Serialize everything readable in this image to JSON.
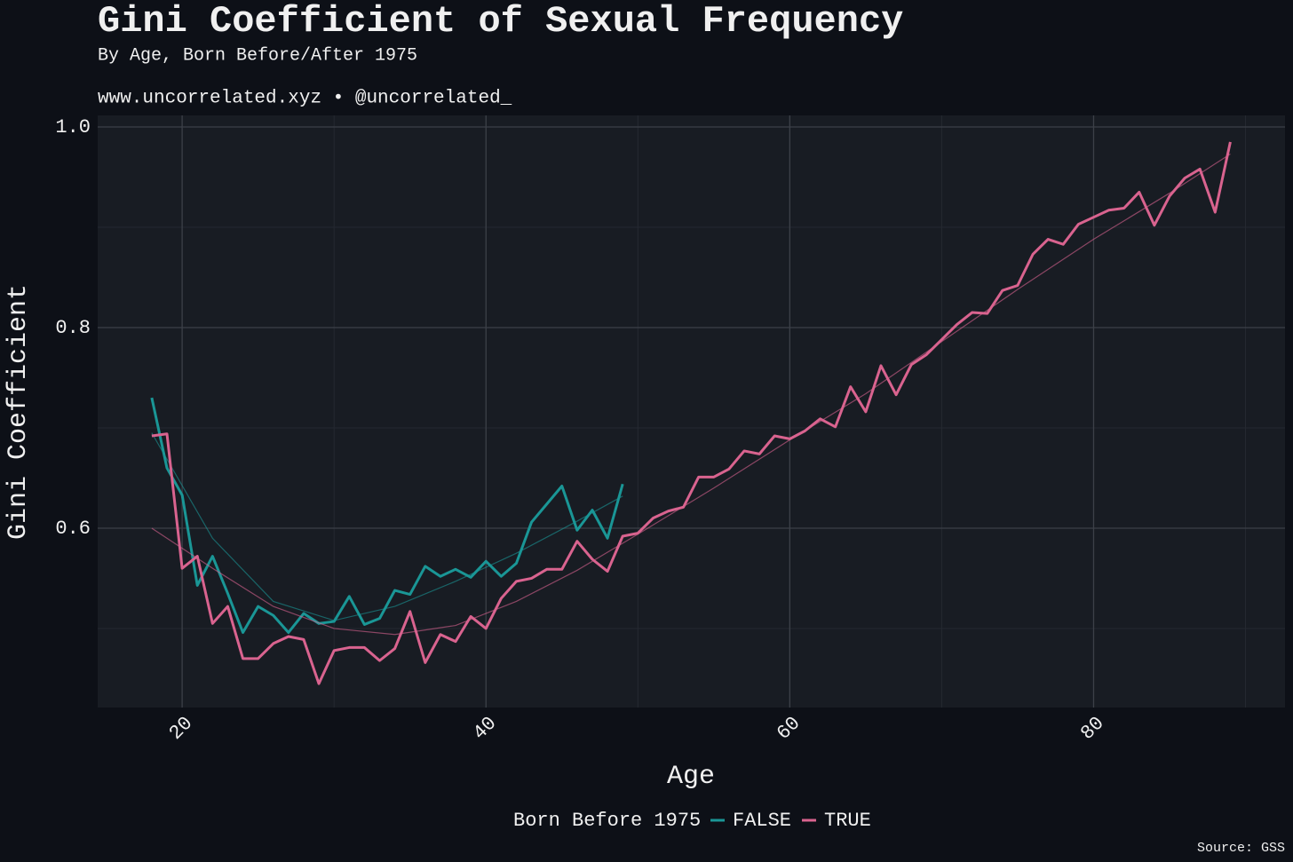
{
  "chart_data": {
    "type": "line",
    "title": "Gini Coefficient of Sexual Frequency",
    "subtitle": "By Age, Born Before/After 1975",
    "caption": "www.uncorrelated.xyz • @uncorrelated_",
    "source": "Source: GSS",
    "x_label": "Age",
    "y_label": "Gini Coefficient",
    "legend_title": "Born Before 1975",
    "xlim": [
      14.44,
      92.6
    ],
    "ylim": [
      0.4212,
      1.0115
    ],
    "xticks": [
      20,
      40,
      60,
      80
    ],
    "yticks": [
      0.6,
      0.8,
      {
        "value": 1.0,
        "label": "1.0"
      }
    ],
    "x_minor_grid": [
      30,
      50,
      70,
      90
    ],
    "y_minor_grid": [
      0.5,
      0.7,
      0.9
    ],
    "grid": true,
    "series": [
      {
        "name": "FALSE",
        "color": "#1a9696",
        "x": [
          18,
          19,
          20,
          21,
          22,
          23,
          24,
          25,
          26,
          27,
          28,
          29,
          30,
          31,
          32,
          33,
          34,
          35,
          36,
          37,
          38,
          39,
          40,
          41,
          42,
          43,
          44,
          45,
          46,
          47,
          48,
          49
        ],
        "values": [
          0.73,
          0.66,
          0.633,
          0.543,
          0.572,
          0.535,
          0.496,
          0.522,
          0.513,
          0.496,
          0.515,
          0.505,
          0.507,
          0.532,
          0.504,
          0.51,
          0.538,
          0.534,
          0.562,
          0.552,
          0.559,
          0.551,
          0.567,
          0.552,
          0.565,
          0.606,
          0.624,
          0.642,
          0.598,
          0.618,
          0.59,
          0.644
        ],
        "trend_x": [
          18,
          22,
          26,
          30,
          34,
          38,
          42,
          46,
          49
        ],
        "trend": [
          0.695,
          0.59,
          0.527,
          0.508,
          0.522,
          0.547,
          0.575,
          0.607,
          0.632
        ]
      },
      {
        "name": "TRUE",
        "color": "#d9638f",
        "x": [
          18,
          19,
          20,
          21,
          22,
          23,
          24,
          25,
          26,
          27,
          28,
          29,
          30,
          31,
          32,
          33,
          34,
          35,
          36,
          37,
          38,
          39,
          40,
          41,
          42,
          43,
          44,
          45,
          46,
          47,
          48,
          49,
          50,
          51,
          52,
          53,
          54,
          55,
          56,
          57,
          58,
          59,
          60,
          61,
          62,
          63,
          64,
          65,
          66,
          67,
          68,
          69,
          70,
          71,
          72,
          73,
          74,
          75,
          76,
          77,
          78,
          79,
          80,
          81,
          82,
          83,
          84,
          85,
          86,
          87,
          88,
          89
        ],
        "values": [
          0.692,
          0.694,
          0.56,
          0.572,
          0.505,
          0.522,
          0.47,
          0.47,
          0.485,
          0.492,
          0.489,
          0.445,
          0.478,
          0.481,
          0.481,
          0.468,
          0.48,
          0.517,
          0.466,
          0.494,
          0.487,
          0.512,
          0.5,
          0.53,
          0.547,
          0.55,
          0.559,
          0.559,
          0.587,
          0.569,
          0.557,
          0.592,
          0.595,
          0.61,
          0.617,
          0.621,
          0.651,
          0.651,
          0.659,
          0.677,
          0.674,
          0.692,
          0.689,
          0.697,
          0.709,
          0.701,
          0.741,
          0.716,
          0.762,
          0.733,
          0.763,
          0.773,
          0.788,
          0.803,
          0.815,
          0.814,
          0.837,
          0.842,
          0.873,
          0.888,
          0.883,
          0.903,
          0.91,
          0.917,
          0.919,
          0.935,
          0.902,
          0.931,
          0.949,
          0.958,
          0.915,
          0.985
        ],
        "trend_x": [
          18,
          22,
          26,
          30,
          34,
          38,
          42,
          46,
          50,
          55,
          60,
          65,
          70,
          75,
          80,
          85,
          89
        ],
        "trend": [
          0.6,
          0.56,
          0.522,
          0.5,
          0.494,
          0.503,
          0.527,
          0.558,
          0.594,
          0.64,
          0.688,
          0.734,
          0.786,
          0.838,
          0.888,
          0.934,
          0.973
        ]
      }
    ]
  }
}
